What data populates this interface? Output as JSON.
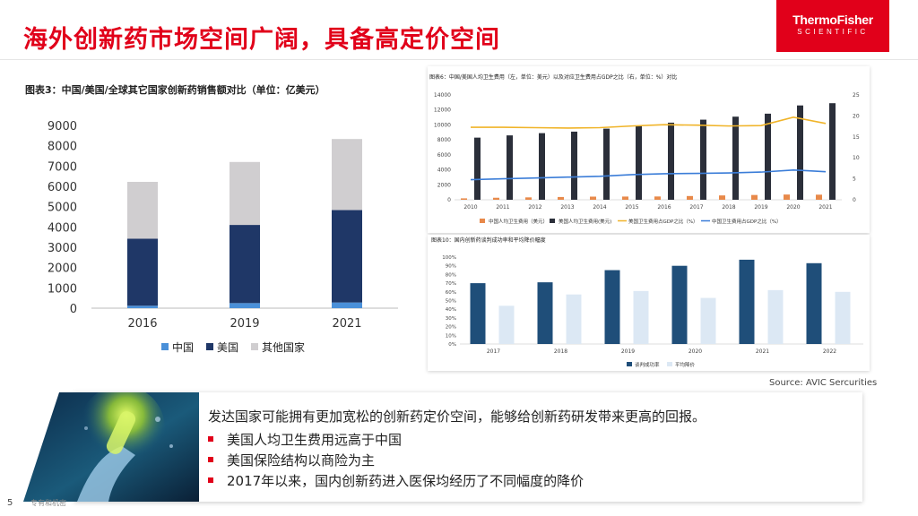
{
  "page": {
    "title": "海外创新药市场空间广阔，具备高定价空间",
    "page_number": "5",
    "footer_text": "专有和机密",
    "source": "Source: AVIC Sercurities"
  },
  "logo": {
    "line1": "ThermoFisher",
    "line2": "SCIENTIFIC"
  },
  "colors": {
    "accent": "#e1001a",
    "navy": "#1f3767",
    "lightblue": "#4a90d9",
    "gray": "#d0ced0",
    "gold": "#f0b429"
  },
  "chart_main": {
    "chart_data": {
      "type": "bar",
      "title": "图表3：中国/美国/全球其它国家创新药销售额对比（单位：亿美元）",
      "categories": [
        "2016",
        "2019",
        "2021"
      ],
      "series": [
        {
          "name": "中国",
          "values": [
            120,
            250,
            280
          ]
        },
        {
          "name": "美国",
          "values": [
            3300,
            3850,
            4550
          ]
        },
        {
          "name": "其他国家",
          "values": [
            2800,
            3100,
            3500
          ]
        }
      ],
      "stacked": true,
      "ylim": [
        0,
        9000
      ],
      "yticks": [
        "0",
        "1000",
        "2000",
        "3000",
        "4000",
        "5000",
        "6000",
        "7000",
        "8000",
        "9000"
      ],
      "legend": "bottom"
    }
  },
  "chart_health": {
    "chart_data": {
      "type": "bar",
      "title": "图表6：中国/美国人均卫生费用（左，单位：美元）以及对应卫生费用占GDP之比（右，单位：%）对比",
      "categories": [
        "2010",
        "2011",
        "2012",
        "2013",
        "2014",
        "2015",
        "2016",
        "2017",
        "2018",
        "2019",
        "2020",
        "2021"
      ],
      "series": [
        {
          "name": "中国人均卫生费用（美元）",
          "axis": "left",
          "type": "bar",
          "values": [
            190,
            270,
            320,
            370,
            420,
            430,
            440,
            500,
            580,
            640,
            700,
            680
          ]
        },
        {
          "name": "美国人均卫生费用(美元)",
          "axis": "left",
          "type": "bar",
          "values": [
            8300,
            8600,
            8900,
            9100,
            9500,
            9900,
            10300,
            10700,
            11100,
            11500,
            12600,
            12900
          ]
        },
        {
          "name": "美国卫生费用占GDP之比（%）",
          "axis": "right",
          "type": "line",
          "values": [
            17.3,
            17.3,
            17.2,
            17.1,
            17.2,
            17.6,
            17.9,
            17.8,
            17.6,
            17.7,
            19.7,
            18.2
          ]
        },
        {
          "name": "中国卫生费用占GDP之比（%）",
          "axis": "right",
          "type": "line",
          "values": [
            4.8,
            5.0,
            5.2,
            5.4,
            5.6,
            6.0,
            6.2,
            6.3,
            6.4,
            6.6,
            7.1,
            6.7
          ]
        }
      ],
      "ylim_left": [
        0,
        14000
      ],
      "yticks_left": [
        "0",
        "2000",
        "4000",
        "6000",
        "8000",
        "10000",
        "12000",
        "14000"
      ],
      "ylim_right": [
        0,
        25
      ],
      "yticks_right": [
        "0",
        "5",
        "10",
        "15",
        "20",
        "25"
      ],
      "legend": "bottom"
    }
  },
  "chart_nrdl": {
    "chart_data": {
      "type": "bar",
      "title": "图表10：国内创新药谈判成功率和平均降价幅度",
      "categories": [
        "2017",
        "2018",
        "2019",
        "2020",
        "2021",
        "2022"
      ],
      "series": [
        {
          "name": "谈判成功率",
          "values": [
            0.7,
            0.71,
            0.85,
            0.9,
            0.97,
            0.93
          ]
        },
        {
          "name": "平均降价",
          "values": [
            0.44,
            0.57,
            0.61,
            0.53,
            0.62,
            0.6
          ]
        }
      ],
      "ylim": [
        0,
        1.0
      ],
      "yticks": [
        "0%",
        "10%",
        "20%",
        "30%",
        "40%",
        "50%",
        "60%",
        "70%",
        "80%",
        "90%",
        "100%"
      ],
      "legend": "bottom"
    }
  },
  "bottom": {
    "main_text": "发达国家可能拥有更加宽松的创新药定价空间，能够给创新药研发带来更高的回报。",
    "bullets": [
      "美国人均卫生费用远高于中国",
      "美国保险结构以商险为主",
      "2017年以来，国内创新药进入医保均经历了不同幅度的降价"
    ]
  }
}
